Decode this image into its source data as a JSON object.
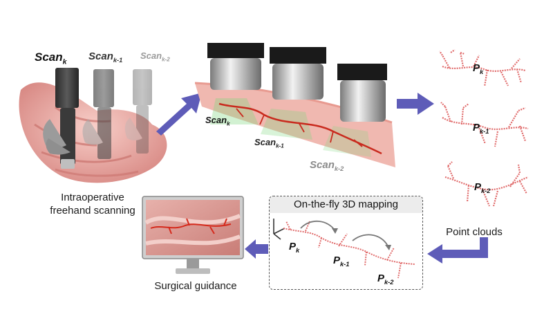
{
  "steps": {
    "scanning": {
      "line1": "Intraoperative",
      "line2": "freehand scanning"
    },
    "point_clouds": "Point clouds",
    "mapping_title": "On-the-fly 3D mapping",
    "guidance": "Surgical guidance"
  },
  "scan_labels": {
    "probe": [
      {
        "base": "Scan",
        "sub": "k"
      },
      {
        "base": "Scan",
        "sub": "k-1"
      },
      {
        "base": "Scan",
        "sub": "k-2"
      }
    ],
    "tissue": [
      {
        "base": "Scan",
        "sub": "k"
      },
      {
        "base": "Scan",
        "sub": "k-1"
      },
      {
        "base": "Scan",
        "sub": "k-2"
      }
    ]
  },
  "point_cloud_labels": [
    {
      "base": "P",
      "sub": "k"
    },
    {
      "base": "P",
      "sub": "k-1"
    },
    {
      "base": "P",
      "sub": "k-2"
    }
  ],
  "mapping_labels": [
    {
      "base": "P",
      "sub": "k"
    },
    {
      "base": "P",
      "sub": "k-1"
    },
    {
      "base": "P",
      "sub": "k-2"
    }
  ],
  "colors": {
    "arrow": "#5e5cb8",
    "vessel": "#d73a2a",
    "point_cloud": "#e06a6a",
    "tissue": "#f0b8b0",
    "intestine": "#e8a39f"
  }
}
